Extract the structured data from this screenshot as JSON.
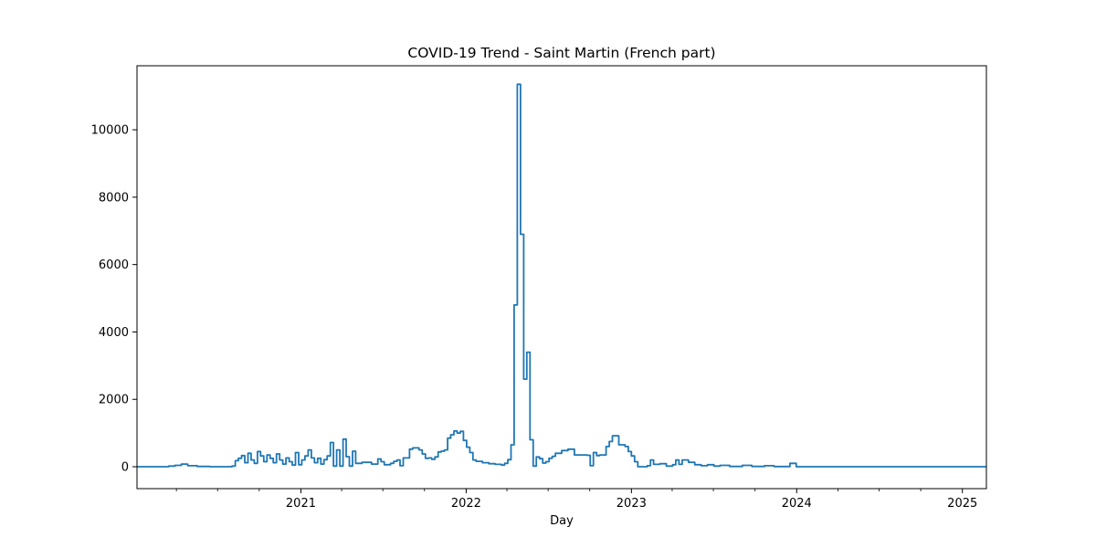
{
  "chart_data": {
    "type": "line",
    "title": "COVID-19 Trend - Saint Martin (French part)",
    "xlabel": "Day",
    "ylabel": "",
    "xlim": [
      "2020-01-05",
      "2025-02-23"
    ],
    "ylim": [
      -650,
      11900
    ],
    "x_ticks": [
      {
        "label": "2021",
        "date": "2021-01-01"
      },
      {
        "label": "2022",
        "date": "2022-01-01"
      },
      {
        "label": "2023",
        "date": "2023-01-01"
      },
      {
        "label": "2024",
        "date": "2024-01-01"
      },
      {
        "label": "2025",
        "date": "2025-01-01"
      }
    ],
    "x_minor_ticks": [
      "2020-04-01",
      "2020-07-01",
      "2020-10-01",
      "2021-04-01",
      "2021-07-01",
      "2021-10-01",
      "2022-04-01",
      "2022-07-01",
      "2022-10-01",
      "2023-04-01",
      "2023-07-01",
      "2023-10-01",
      "2024-04-01",
      "2024-07-01",
      "2024-10-01"
    ],
    "y_ticks": [
      0,
      2000,
      4000,
      6000,
      8000,
      10000
    ],
    "y_tick_labels": [
      "0",
      "2000",
      "4000",
      "6000",
      "8000",
      "10000"
    ],
    "grid": false,
    "color": "#1f77b4",
    "series": [
      {
        "name": "",
        "points": [
          [
            "2020-01-05",
            0
          ],
          [
            "2020-03-01",
            0
          ],
          [
            "2020-03-15",
            20
          ],
          [
            "2020-03-29",
            40
          ],
          [
            "2020-04-12",
            80
          ],
          [
            "2020-04-26",
            30
          ],
          [
            "2020-05-17",
            10
          ],
          [
            "2020-06-14",
            0
          ],
          [
            "2020-08-02",
            20
          ],
          [
            "2020-08-09",
            180
          ],
          [
            "2020-08-16",
            250
          ],
          [
            "2020-08-23",
            330
          ],
          [
            "2020-08-30",
            120
          ],
          [
            "2020-09-06",
            400
          ],
          [
            "2020-09-13",
            200
          ],
          [
            "2020-09-20",
            100
          ],
          [
            "2020-09-27",
            450
          ],
          [
            "2020-10-04",
            320
          ],
          [
            "2020-10-11",
            150
          ],
          [
            "2020-10-18",
            350
          ],
          [
            "2020-10-25",
            250
          ],
          [
            "2020-11-01",
            120
          ],
          [
            "2020-11-08",
            380
          ],
          [
            "2020-11-15",
            200
          ],
          [
            "2020-11-22",
            80
          ],
          [
            "2020-11-29",
            260
          ],
          [
            "2020-12-06",
            150
          ],
          [
            "2020-12-13",
            50
          ],
          [
            "2020-12-20",
            420
          ],
          [
            "2020-12-27",
            60
          ],
          [
            "2021-01-03",
            200
          ],
          [
            "2021-01-10",
            320
          ],
          [
            "2021-01-17",
            500
          ],
          [
            "2021-01-24",
            260
          ],
          [
            "2021-01-31",
            120
          ],
          [
            "2021-02-07",
            250
          ],
          [
            "2021-02-14",
            80
          ],
          [
            "2021-02-21",
            210
          ],
          [
            "2021-02-28",
            320
          ],
          [
            "2021-03-07",
            720
          ],
          [
            "2021-03-14",
            20
          ],
          [
            "2021-03-21",
            500
          ],
          [
            "2021-03-28",
            20
          ],
          [
            "2021-04-04",
            820
          ],
          [
            "2021-04-11",
            300
          ],
          [
            "2021-04-18",
            20
          ],
          [
            "2021-04-25",
            460
          ],
          [
            "2021-05-02",
            100
          ],
          [
            "2021-05-16",
            130
          ],
          [
            "2021-06-06",
            80
          ],
          [
            "2021-06-20",
            230
          ],
          [
            "2021-06-27",
            150
          ],
          [
            "2021-07-04",
            60
          ],
          [
            "2021-07-18",
            100
          ],
          [
            "2021-07-25",
            160
          ],
          [
            "2021-08-01",
            200
          ],
          [
            "2021-08-08",
            30
          ],
          [
            "2021-08-15",
            260
          ],
          [
            "2021-08-29",
            520
          ],
          [
            "2021-09-05",
            560
          ],
          [
            "2021-09-19",
            500
          ],
          [
            "2021-09-26",
            380
          ],
          [
            "2021-10-03",
            250
          ],
          [
            "2021-10-10",
            260
          ],
          [
            "2021-10-17",
            220
          ],
          [
            "2021-10-24",
            290
          ],
          [
            "2021-10-31",
            440
          ],
          [
            "2021-11-07",
            460
          ],
          [
            "2021-11-14",
            500
          ],
          [
            "2021-11-21",
            850
          ],
          [
            "2021-11-28",
            950
          ],
          [
            "2021-12-05",
            1060
          ],
          [
            "2021-12-12",
            1000
          ],
          [
            "2021-12-19",
            1050
          ],
          [
            "2021-12-26",
            780
          ],
          [
            "2022-01-02",
            580
          ],
          [
            "2022-01-09",
            420
          ],
          [
            "2022-01-16",
            200
          ],
          [
            "2022-01-23",
            160
          ],
          [
            "2022-02-06",
            120
          ],
          [
            "2022-02-20",
            90
          ],
          [
            "2022-03-06",
            70
          ],
          [
            "2022-03-20",
            50
          ],
          [
            "2022-03-27",
            100
          ],
          [
            "2022-04-03",
            210
          ],
          [
            "2022-04-10",
            650
          ],
          [
            "2022-04-17",
            4800
          ],
          [
            "2022-04-24",
            11350
          ],
          [
            "2022-05-01",
            6900
          ],
          [
            "2022-05-08",
            2600
          ],
          [
            "2022-05-15",
            3400
          ],
          [
            "2022-05-22",
            800
          ],
          [
            "2022-05-29",
            20
          ],
          [
            "2022-06-05",
            290
          ],
          [
            "2022-06-12",
            240
          ],
          [
            "2022-06-19",
            110
          ],
          [
            "2022-06-26",
            150
          ],
          [
            "2022-07-03",
            250
          ],
          [
            "2022-07-10",
            310
          ],
          [
            "2022-07-17",
            400
          ],
          [
            "2022-07-31",
            480
          ],
          [
            "2022-08-14",
            520
          ],
          [
            "2022-08-28",
            350
          ],
          [
            "2022-09-25",
            340
          ],
          [
            "2022-10-02",
            30
          ],
          [
            "2022-10-09",
            420
          ],
          [
            "2022-10-16",
            330
          ],
          [
            "2022-10-23",
            350
          ],
          [
            "2022-11-06",
            600
          ],
          [
            "2022-11-13",
            750
          ],
          [
            "2022-11-20",
            920
          ],
          [
            "2022-12-04",
            650
          ],
          [
            "2022-12-18",
            600
          ],
          [
            "2022-12-25",
            450
          ],
          [
            "2023-01-01",
            320
          ],
          [
            "2023-01-08",
            150
          ],
          [
            "2023-01-15",
            0
          ],
          [
            "2023-02-05",
            30
          ],
          [
            "2023-02-12",
            200
          ],
          [
            "2023-02-19",
            70
          ],
          [
            "2023-03-05",
            90
          ],
          [
            "2023-03-19",
            20
          ],
          [
            "2023-04-02",
            60
          ],
          [
            "2023-04-09",
            200
          ],
          [
            "2023-04-16",
            70
          ],
          [
            "2023-04-23",
            200
          ],
          [
            "2023-05-07",
            130
          ],
          [
            "2023-05-21",
            60
          ],
          [
            "2023-06-04",
            30
          ],
          [
            "2023-06-18",
            60
          ],
          [
            "2023-07-02",
            20
          ],
          [
            "2023-07-16",
            40
          ],
          [
            "2023-08-06",
            10
          ],
          [
            "2023-09-03",
            40
          ],
          [
            "2023-09-24",
            10
          ],
          [
            "2023-10-22",
            30
          ],
          [
            "2023-11-12",
            5
          ],
          [
            "2023-12-17",
            100
          ],
          [
            "2023-12-31",
            0
          ],
          [
            "2025-02-23",
            0
          ]
        ]
      }
    ]
  }
}
